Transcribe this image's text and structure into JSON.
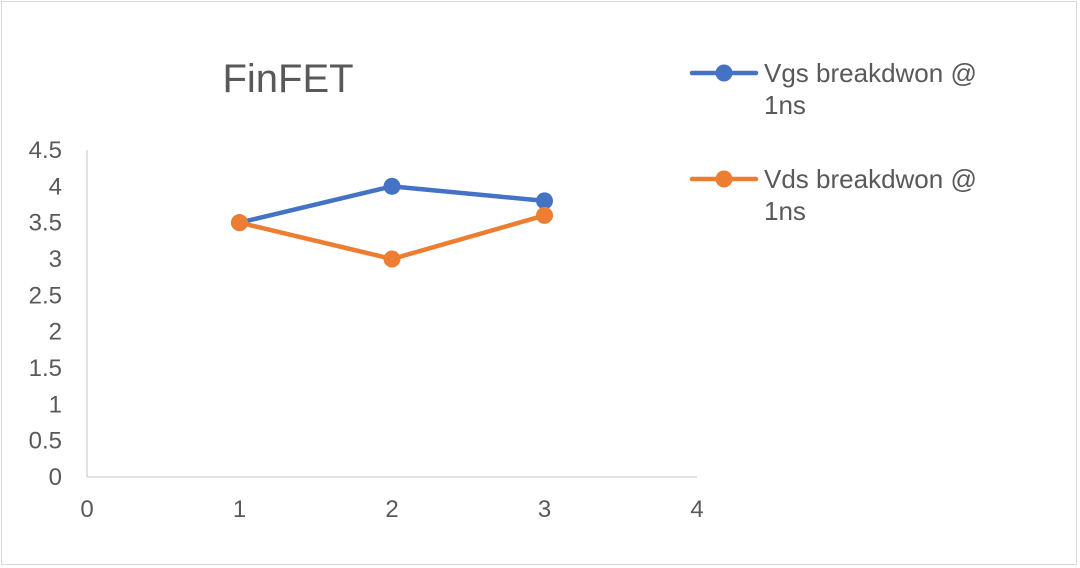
{
  "chart_data": {
    "type": "line",
    "title": "FinFET",
    "xlabel": "",
    "ylabel": "",
    "xlim": [
      0,
      4
    ],
    "ylim": [
      0,
      4.5
    ],
    "x_ticks": [
      "0",
      "1",
      "2",
      "3",
      "4"
    ],
    "y_ticks": [
      "0",
      "0.5",
      "1",
      "1.5",
      "2",
      "2.5",
      "3",
      "3.5",
      "4",
      "4.5"
    ],
    "x": [
      1,
      2,
      3
    ],
    "grid": false,
    "legend_position": "right",
    "series": [
      {
        "name": "Vgs breakdwon @ 1ns",
        "legend_lines": [
          "Vgs breakdwon @",
          "1ns"
        ],
        "values": [
          3.5,
          4.0,
          3.8
        ],
        "color": "#4472C4"
      },
      {
        "name": "Vds breakdwon @ 1ns",
        "legend_lines": [
          "Vds breakdwon @",
          "1ns"
        ],
        "values": [
          3.5,
          3.0,
          3.6
        ],
        "color": "#ED7D31"
      }
    ]
  }
}
